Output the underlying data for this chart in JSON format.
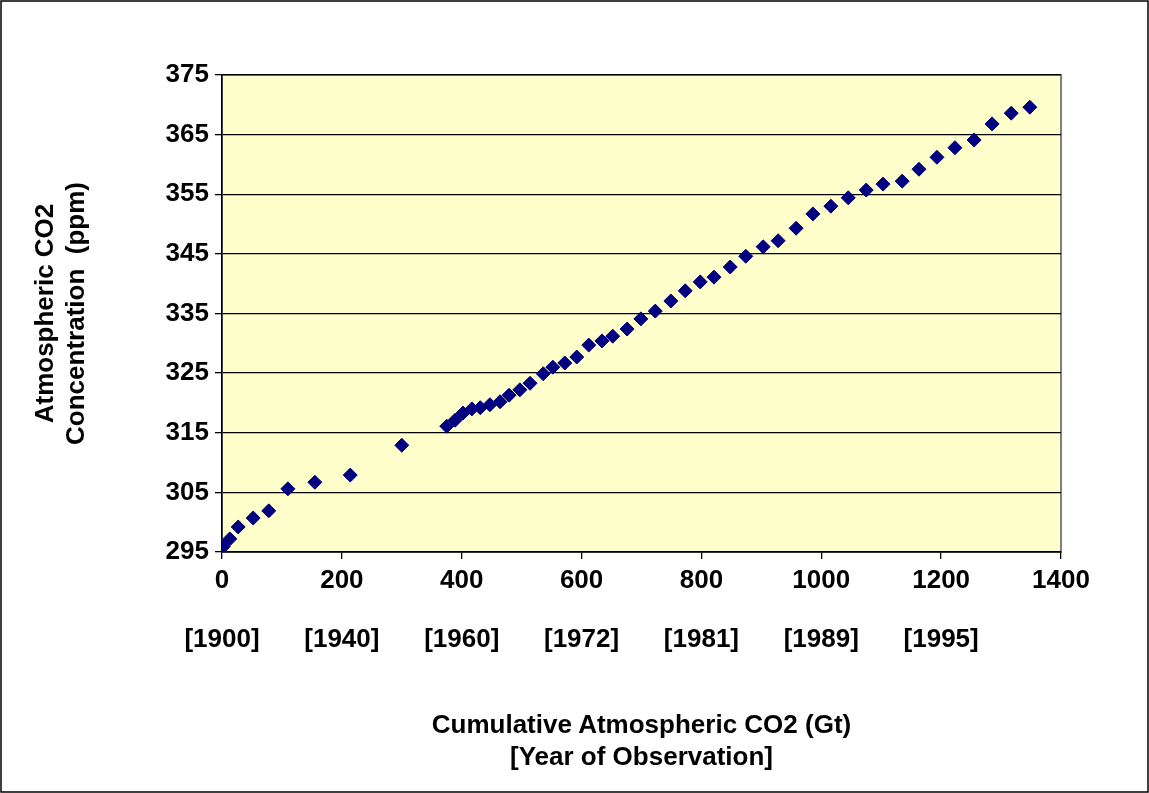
{
  "chart_data": {
    "type": "scatter",
    "xlabel": "Cumulative Atmospheric CO2 (Gt)\n[Year of Observation]",
    "ylabel": "Atmospheric CO2\nConcentration  (ppm)",
    "x": [
      2,
      13,
      27,
      52,
      78,
      110,
      155,
      214,
      300,
      375,
      389,
      402,
      417,
      431,
      447,
      464,
      479,
      497,
      514,
      536,
      552,
      572,
      592,
      612,
      634,
      652,
      676,
      699,
      723,
      749,
      773,
      798,
      821,
      848,
      874,
      903,
      928,
      958,
      986,
      1016,
      1045,
      1075,
      1103,
      1135,
      1163,
      1193,
      1223,
      1255,
      1285,
      1317,
      1348
    ],
    "series": [
      {
        "color": "#000080",
        "values": [
          295.9,
          297.2,
          299.2,
          300.7,
          301.9,
          305.6,
          306.7,
          307.9,
          312.9,
          316.1,
          317.1,
          318.3,
          319.0,
          319.2,
          319.7,
          320.2,
          321.3,
          322.2,
          323.3,
          324.9,
          326.0,
          326.7,
          327.7,
          329.7,
          330.4,
          331.2,
          332.4,
          334.1,
          335.4,
          337.1,
          338.8,
          340.3,
          341.1,
          342.8,
          344.6,
          346.2,
          347.2,
          349.3,
          351.7,
          353.0,
          354.4,
          355.7,
          356.7,
          357.2,
          359.2,
          361.2,
          362.8,
          364.1,
          366.8,
          368.6,
          369.6
        ]
      }
    ],
    "xlim": [
      0,
      1400
    ],
    "xticks": [
      0,
      200,
      400,
      600,
      800,
      1000,
      1200,
      1400
    ],
    "annotations": [
      "[1900]",
      "[1940]",
      "[1960]",
      "[1972]",
      "[1981]",
      "[1989]",
      "[1995]"
    ],
    "ylim": [
      295,
      375
    ],
    "yticks": [
      295,
      305,
      315,
      325,
      335,
      345,
      355,
      365,
      375
    ],
    "grid": "y",
    "marker": "diamond",
    "legend": false
  }
}
